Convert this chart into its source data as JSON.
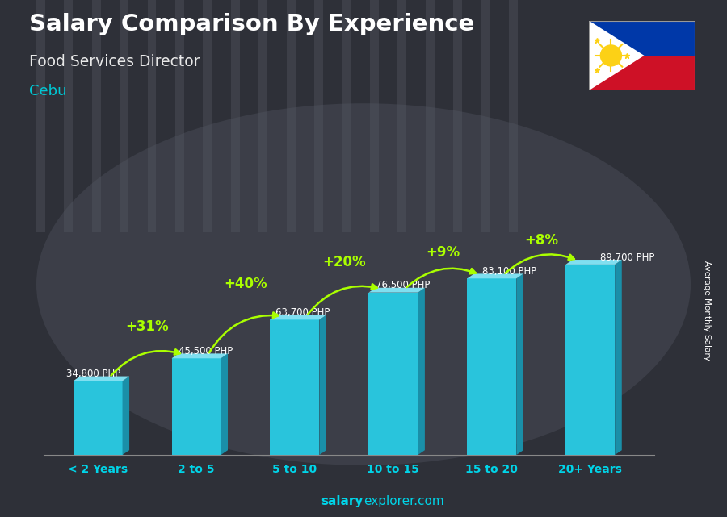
{
  "title": "Salary Comparison By Experience",
  "subtitle": "Food Services Director",
  "location": "Cebu",
  "categories": [
    "< 2 Years",
    "2 to 5",
    "5 to 10",
    "10 to 15",
    "15 to 20",
    "20+ Years"
  ],
  "values": [
    34800,
    45500,
    63700,
    76500,
    83100,
    89700
  ],
  "labels": [
    "34,800 PHP",
    "45,500 PHP",
    "63,700 PHP",
    "76,500 PHP",
    "83,100 PHP",
    "89,700 PHP"
  ],
  "pct_changes": [
    null,
    "+31%",
    "+40%",
    "+20%",
    "+9%",
    "+8%"
  ],
  "bar_color_face": "#29c4dc",
  "bar_color_light": "#80dff0",
  "bar_color_dark": "#1a8fa8",
  "bg_color": "#3a3d4a",
  "title_color": "#ffffff",
  "subtitle_color": "#e8e8e8",
  "location_color": "#00c8d4",
  "label_color": "#ffffff",
  "pct_color": "#aaff00",
  "arrow_color": "#aaff00",
  "ylabel": "Average Monthly Salary",
  "ylabel_color": "#ffffff",
  "footer_color": "#ffffff",
  "xtick_color": "#00d4e8",
  "spine_color": "#555555"
}
